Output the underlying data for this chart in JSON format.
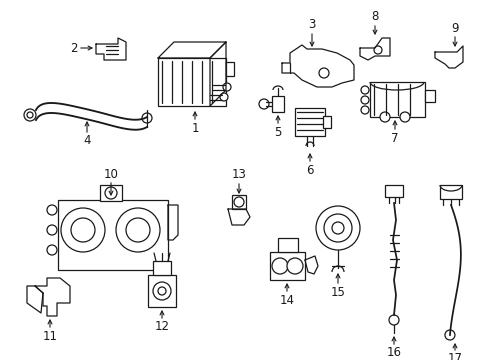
{
  "bg_color": "#ffffff",
  "line_color": "#1a1a1a",
  "fig_width": 4.89,
  "fig_height": 3.6,
  "dpi": 100,
  "lw": 0.9,
  "label_fontsize": 8.5
}
